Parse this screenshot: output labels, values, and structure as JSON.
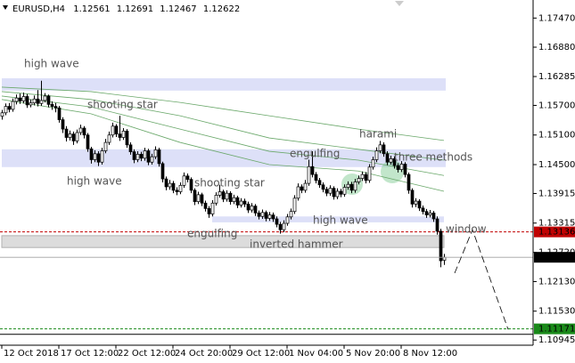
{
  "chart_data": {
    "type": "candlestick",
    "title": "EURUSD,H4",
    "xlim": [
      -0.5,
      149
    ],
    "ylim": [
      1.1084,
      1.178
    ],
    "xticks": [
      {
        "value": 0,
        "label": "12 Oct 2018"
      },
      {
        "value": 16,
        "label": "17 Oct 12:00"
      },
      {
        "value": 32,
        "label": "22 Oct 12:00"
      },
      {
        "value": 48,
        "label": "24 Oct 20:00"
      },
      {
        "value": 64,
        "label": "29 Oct 12:00"
      },
      {
        "value": 80,
        "label": "1 Nov 04:00"
      },
      {
        "value": 96,
        "label": "5 Nov 20:00"
      },
      {
        "value": 112,
        "label": "8 Nov 12:00"
      }
    ],
    "yticks": [
      {
        "value": 1.1747,
        "label": "1.17470"
      },
      {
        "value": 1.1688,
        "label": "1.16880"
      },
      1.16285,
      {
        "value": 1.157,
        "label": "1.15700"
      },
      {
        "value": 1.151,
        "label": "1.15100"
      },
      {
        "value": 1.145,
        "label": "1.14500"
      },
      1.13915,
      1.13315,
      {
        "value": 1.1272,
        "label": "1.12720"
      },
      {
        "value": 1.1213,
        "label": "1.12130"
      },
      {
        "value": 1.1153,
        "label": "1.11530"
      },
      1.10945
    ],
    "color": "#000000",
    "ohlc": {
      "open": [
        1.1548,
        1.1555,
        1.1568,
        1.1562,
        1.1578,
        1.1585,
        1.1579,
        1.1588,
        1.1571,
        1.1575,
        1.1583,
        1.1574,
        1.158,
        1.1589,
        1.1572,
        1.1568,
        1.1565,
        1.1541,
        1.1522,
        1.1505,
        1.1512,
        1.1498,
        1.1515,
        1.1524,
        1.151,
        1.1482,
        1.146,
        1.1472,
        1.1455,
        1.1478,
        1.1495,
        1.151,
        1.1528,
        1.1512,
        1.1505,
        1.1518,
        1.149,
        1.1476,
        1.146,
        1.1471,
        1.1463,
        1.1478,
        1.1455,
        1.1466,
        1.148,
        1.1452,
        1.1421,
        1.1405,
        1.1412,
        1.1398,
        1.1395,
        1.1408,
        1.1427,
        1.142,
        1.1398,
        1.1375,
        1.1389,
        1.1372,
        1.1361,
        1.135,
        1.1372,
        1.1388,
        1.1395,
        1.138,
        1.1392,
        1.1375,
        1.1383,
        1.1368,
        1.1376,
        1.137,
        1.1358,
        1.1366,
        1.1352,
        1.1345,
        1.1353,
        1.1341,
        1.1348,
        1.134,
        1.1329,
        1.1318,
        1.1331,
        1.1344,
        1.1355,
        1.1382,
        1.1405,
        1.1398,
        1.1412,
        1.1446,
        1.143,
        1.1418,
        1.1409,
        1.14,
        1.1392,
        1.1402,
        1.1385,
        1.1396,
        1.139,
        1.1404,
        1.141,
        1.1398,
        1.1415,
        1.1422,
        1.143,
        1.1418,
        1.1445,
        1.146,
        1.1478,
        1.149,
        1.1472,
        1.1455,
        1.1462,
        1.1448,
        1.144,
        1.1451,
        1.143,
        1.1398,
        1.137,
        1.1376,
        1.1362,
        1.1355,
        1.1348,
        1.1352,
        1.134,
        1.1315,
        1.12561
      ],
      "high": [
        1.1561,
        1.1574,
        1.1575,
        1.1584,
        1.1592,
        1.1594,
        1.1596,
        1.1593,
        1.1582,
        1.159,
        1.1601,
        1.162,
        1.1595,
        1.1592,
        1.1578,
        1.1575,
        1.1569,
        1.1546,
        1.1528,
        1.1519,
        1.1517,
        1.1521,
        1.1531,
        1.1528,
        1.1514,
        1.1486,
        1.1479,
        1.1477,
        1.1484,
        1.1502,
        1.1517,
        1.1535,
        1.1532,
        1.1549,
        1.1524,
        1.1522,
        1.1495,
        1.1481,
        1.1477,
        1.1476,
        1.1484,
        1.1482,
        1.1472,
        1.1487,
        1.1484,
        1.1456,
        1.1426,
        1.1419,
        1.1417,
        1.1404,
        1.1414,
        1.1434,
        1.1432,
        1.1424,
        1.1402,
        1.1395,
        1.1393,
        1.1377,
        1.1366,
        1.1378,
        1.1394,
        1.1409,
        1.1399,
        1.1398,
        1.1396,
        1.1389,
        1.1387,
        1.1382,
        1.1381,
        1.1375,
        1.1372,
        1.137,
        1.1357,
        1.1359,
        1.1357,
        1.1354,
        1.1353,
        1.1345,
        1.1334,
        1.1337,
        1.135,
        1.1361,
        1.1388,
        1.1412,
        1.141,
        1.1419,
        1.146,
        1.1477,
        1.1435,
        1.1423,
        1.1414,
        1.1405,
        1.1408,
        1.1406,
        1.1402,
        1.1401,
        1.141,
        1.1416,
        1.1415,
        1.1421,
        1.1428,
        1.1436,
        1.1435,
        1.1451,
        1.1466,
        1.1485,
        1.1498,
        1.1495,
        1.1477,
        1.1468,
        1.1467,
        1.1453,
        1.1457,
        1.1455,
        1.1434,
        1.1402,
        1.1382,
        1.138,
        1.1367,
        1.136,
        1.1358,
        1.1356,
        1.1345,
        1.132,
        1.12691
      ],
      "low": [
        1.1541,
        1.155,
        1.1556,
        1.1557,
        1.1572,
        1.1573,
        1.1574,
        1.1565,
        1.1566,
        1.157,
        1.1568,
        1.1569,
        1.1576,
        1.1566,
        1.1561,
        1.1556,
        1.1535,
        1.1514,
        1.1497,
        1.1499,
        1.149,
        1.1493,
        1.151,
        1.1503,
        1.1476,
        1.1452,
        1.1455,
        1.1447,
        1.145,
        1.1473,
        1.149,
        1.1505,
        1.1506,
        1.1498,
        1.15,
        1.1484,
        1.147,
        1.1453,
        1.1455,
        1.1457,
        1.1458,
        1.1449,
        1.145,
        1.1461,
        1.1446,
        1.1414,
        1.1398,
        1.1399,
        1.1392,
        1.1388,
        1.139,
        1.1403,
        1.1414,
        1.1392,
        1.1368,
        1.137,
        1.1366,
        1.1355,
        1.1342,
        1.1345,
        1.1367,
        1.1383,
        1.1374,
        1.1375,
        1.1369,
        1.137,
        1.1362,
        1.1363,
        1.1364,
        1.1352,
        1.1353,
        1.1346,
        1.1339,
        1.134,
        1.1335,
        1.1336,
        1.1334,
        1.1323,
        1.131,
        1.1313,
        1.1326,
        1.1339,
        1.135,
        1.1377,
        1.1392,
        1.1393,
        1.1407,
        1.1424,
        1.1412,
        1.1403,
        1.1394,
        1.1386,
        1.1387,
        1.1379,
        1.138,
        1.1384,
        1.1385,
        1.1399,
        1.1392,
        1.1393,
        1.141,
        1.1417,
        1.1412,
        1.1413,
        1.144,
        1.1455,
        1.1473,
        1.1466,
        1.1449,
        1.145,
        1.1442,
        1.1434,
        1.1435,
        1.1424,
        1.1391,
        1.1363,
        1.1364,
        1.1356,
        1.1349,
        1.1342,
        1.1343,
        1.1334,
        1.1308,
        1.1242,
        1.12467
      ],
      "close": [
        1.1555,
        1.1568,
        1.1562,
        1.1578,
        1.1585,
        1.1579,
        1.1588,
        1.1571,
        1.1575,
        1.1583,
        1.1574,
        1.158,
        1.1589,
        1.1572,
        1.1568,
        1.1565,
        1.1541,
        1.1522,
        1.1505,
        1.1512,
        1.1498,
        1.1515,
        1.1524,
        1.151,
        1.1482,
        1.146,
        1.1472,
        1.1455,
        1.1478,
        1.1495,
        1.151,
        1.1528,
        1.1512,
        1.1505,
        1.1518,
        1.149,
        1.1476,
        1.146,
        1.1471,
        1.1463,
        1.1478,
        1.1455,
        1.1466,
        1.148,
        1.1452,
        1.1421,
        1.1405,
        1.1412,
        1.1398,
        1.1395,
        1.1408,
        1.1427,
        1.142,
        1.1398,
        1.1375,
        1.1389,
        1.1372,
        1.1361,
        1.135,
        1.1372,
        1.1388,
        1.1395,
        1.138,
        1.1392,
        1.1375,
        1.1383,
        1.1368,
        1.1376,
        1.137,
        1.1358,
        1.1366,
        1.1352,
        1.1345,
        1.1353,
        1.1341,
        1.1348,
        1.134,
        1.1329,
        1.1318,
        1.1331,
        1.1344,
        1.1355,
        1.1382,
        1.1405,
        1.1398,
        1.1412,
        1.1446,
        1.143,
        1.1418,
        1.1409,
        1.14,
        1.1392,
        1.1402,
        1.1385,
        1.1396,
        1.139,
        1.1404,
        1.141,
        1.1398,
        1.1415,
        1.1422,
        1.143,
        1.1418,
        1.1445,
        1.146,
        1.1478,
        1.149,
        1.1472,
        1.1455,
        1.1462,
        1.1448,
        1.144,
        1.1451,
        1.143,
        1.1398,
        1.137,
        1.1376,
        1.1362,
        1.1355,
        1.1348,
        1.1352,
        1.134,
        1.1315,
        1.1255,
        1.12622
      ]
    },
    "moving_averages": [
      {
        "color": "#6aa86a",
        "x": [
          0,
          25,
          50,
          75,
          100,
          124
        ],
        "values": [
          1.1607,
          1.1598,
          1.1576,
          1.1549,
          1.1522,
          1.1499
        ]
      },
      {
        "color": "#6aa86a",
        "x": [
          0,
          25,
          50,
          75,
          100,
          124
        ],
        "values": [
          1.1598,
          1.1582,
          1.1549,
          1.1504,
          1.1481,
          1.1459
        ]
      },
      {
        "color": "#6aa86a",
        "x": [
          0,
          25,
          50,
          75,
          100,
          124
        ],
        "values": [
          1.1589,
          1.1567,
          1.1522,
          1.1477,
          1.1459,
          1.1428
        ]
      },
      {
        "color": "#6aa86a",
        "x": [
          0,
          25,
          50,
          75,
          100,
          124
        ],
        "values": [
          1.1582,
          1.1553,
          1.1495,
          1.145,
          1.1437,
          1.1396
        ]
      }
    ],
    "zones": [
      {
        "from": 0,
        "to": 124.5,
        "low": 1.16,
        "high": 1.1625,
        "color": "#dde0f8"
      },
      {
        "from": 0,
        "to": 124.5,
        "low": 1.1445,
        "high": 1.1481,
        "color": "#dde0f8"
      },
      {
        "from": 59,
        "to": 124,
        "low": 1.1333,
        "high": 1.1345,
        "color": "#dde0f8"
      },
      {
        "from": 0,
        "to": 124,
        "low": 1.1282,
        "high": 1.1306,
        "color": "#dcdcdc"
      }
    ],
    "levels": [
      {
        "value": 1.13136,
        "color": "#c00000",
        "text_color": "#ffffff",
        "style": "dashed"
      },
      {
        "value": 1.11171,
        "color": "#1a8a1a",
        "text_color": "#000000",
        "style": "dashed"
      },
      {
        "value": 1.1106,
        "color": "#000000",
        "style": "solid"
      }
    ],
    "current_price_color": "#a0a0a0",
    "projection": {
      "color": "#000000",
      "x": [
        127,
        132,
        142
      ],
      "values": [
        1.123,
        1.1318,
        1.1116
      ]
    },
    "annotations": [
      "high wave",
      "shooting star",
      "high wave",
      "shooting star",
      "engulfing",
      "inverted hammer",
      "engulfing",
      "harami",
      "three methods",
      "high wave",
      "window"
    ]
  }
}
